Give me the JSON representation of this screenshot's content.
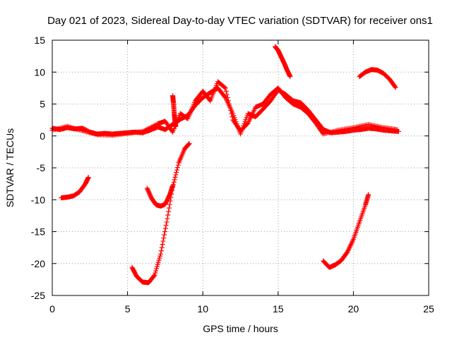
{
  "chart_data": {
    "type": "scatter",
    "title": "Day 021 of 2023, Sidereal Day-to-day VTEC variation (SDTVAR) for receiver ons1",
    "xlabel": "GPS time / hours",
    "ylabel": "SDTVAR / TECUs",
    "xlim": [
      0,
      25
    ],
    "ylim": [
      -25,
      15
    ],
    "xticks": [
      "0",
      "5",
      "10",
      "15",
      "20",
      "25"
    ],
    "yticks": [
      "15",
      "10",
      "5",
      "0",
      "-5",
      "-10",
      "-15",
      "-20",
      "-25"
    ],
    "grid": true,
    "marker": "+",
    "color": "#ff0000",
    "series": [
      {
        "name": "main-trace",
        "x": [
          0,
          0.5,
          1,
          1.5,
          2,
          2.5,
          3,
          3.5,
          4,
          4.5,
          5,
          5.5,
          6,
          6.5,
          7,
          7.5,
          8,
          8.5,
          9,
          9.5,
          10,
          10.5,
          11,
          11.5,
          12,
          12.5,
          13,
          13.5,
          14,
          14.5,
          15,
          15.5,
          16,
          16.5,
          17,
          17.5,
          18,
          18.5,
          19,
          19.5,
          20,
          20.5,
          21,
          21.5,
          22,
          22.5,
          23
        ],
        "y": [
          1.2,
          1.0,
          1.3,
          1.1,
          1.2,
          0.6,
          0.3,
          0.4,
          0.3,
          0.4,
          0.5,
          0.6,
          0.5,
          0.9,
          1.4,
          1.0,
          1.8,
          2.6,
          3.2,
          4.8,
          6.0,
          6.8,
          7.5,
          6.0,
          3.5,
          0.3,
          3.5,
          3.0,
          4.2,
          5.5,
          7.2,
          6.5,
          5.5,
          5.2,
          4.0,
          2.5,
          1.0,
          0.5,
          0.6,
          0.7,
          0.9,
          1.0,
          1.2,
          1.1,
          0.9,
          0.8,
          0.7
        ]
      },
      {
        "name": "main-trace-b",
        "x": [
          0,
          1,
          2,
          3,
          4,
          5,
          6,
          7,
          7.5,
          8,
          8.5,
          9,
          9.5,
          10,
          10.5,
          11,
          11.5,
          12,
          12.5,
          13,
          13.5,
          14,
          14.5,
          15,
          15.5,
          16,
          16.5,
          17,
          17.5,
          18,
          19,
          20,
          21,
          22,
          22.9
        ],
        "y": [
          0.9,
          1.5,
          0.8,
          0.2,
          0.1,
          0.4,
          0.7,
          1.9,
          2.3,
          0.6,
          3.5,
          2.7,
          5.5,
          7.0,
          5.5,
          8.5,
          7.5,
          2.5,
          0.8,
          2.0,
          4.5,
          5.0,
          6.5,
          7.5,
          6.0,
          5.0,
          4.5,
          3.5,
          2.0,
          0.3,
          0.9,
          1.3,
          1.8,
          1.3,
          1.0
        ]
      },
      {
        "name": "spike-8",
        "x": [
          8.0,
          8.05,
          8.1,
          8.15,
          8.2
        ],
        "y": [
          6.3,
          5.2,
          3.5,
          2.2,
          1.5
        ]
      },
      {
        "name": "arc-upper-15",
        "x": [
          14.8,
          15.0,
          15.2,
          15.4,
          15.6,
          15.8
        ],
        "y": [
          14.0,
          13.4,
          12.4,
          11.4,
          10.3,
          9.3
        ]
      },
      {
        "name": "arc-upper-21",
        "x": [
          20.4,
          20.8,
          21.2,
          21.6,
          22.0,
          22.4,
          22.8
        ],
        "y": [
          9.3,
          10.0,
          10.4,
          10.3,
          9.8,
          8.9,
          7.6
        ]
      },
      {
        "name": "arc-left",
        "x": [
          0.6,
          1.0,
          1.4,
          1.8,
          2.2,
          2.4
        ],
        "y": [
          -9.7,
          -9.6,
          -9.4,
          -8.8,
          -7.5,
          -6.5
        ]
      },
      {
        "name": "arc-mid",
        "x": [
          6.3,
          6.6,
          6.9,
          7.2,
          7.5,
          7.8,
          8.0
        ],
        "y": [
          -8.2,
          -9.8,
          -10.8,
          -11.0,
          -10.7,
          -9.2,
          -7.8
        ]
      },
      {
        "name": "arc-deep",
        "x": [
          5.3,
          5.6,
          6.0,
          6.4,
          6.8,
          7.2,
          7.6,
          8.0,
          8.4,
          8.8,
          9.1
        ],
        "y": [
          -20.6,
          -22.0,
          -22.9,
          -23.0,
          -21.8,
          -18.5,
          -13.5,
          -8.0,
          -4.2,
          -2.0,
          -1.2
        ]
      },
      {
        "name": "arc-right",
        "x": [
          18.0,
          18.4,
          18.8,
          19.2,
          19.6,
          20.0,
          20.4,
          20.8,
          21.0
        ],
        "y": [
          -19.6,
          -20.6,
          -20.2,
          -19.5,
          -18.2,
          -16.2,
          -13.5,
          -10.8,
          -9.2
        ]
      }
    ]
  }
}
